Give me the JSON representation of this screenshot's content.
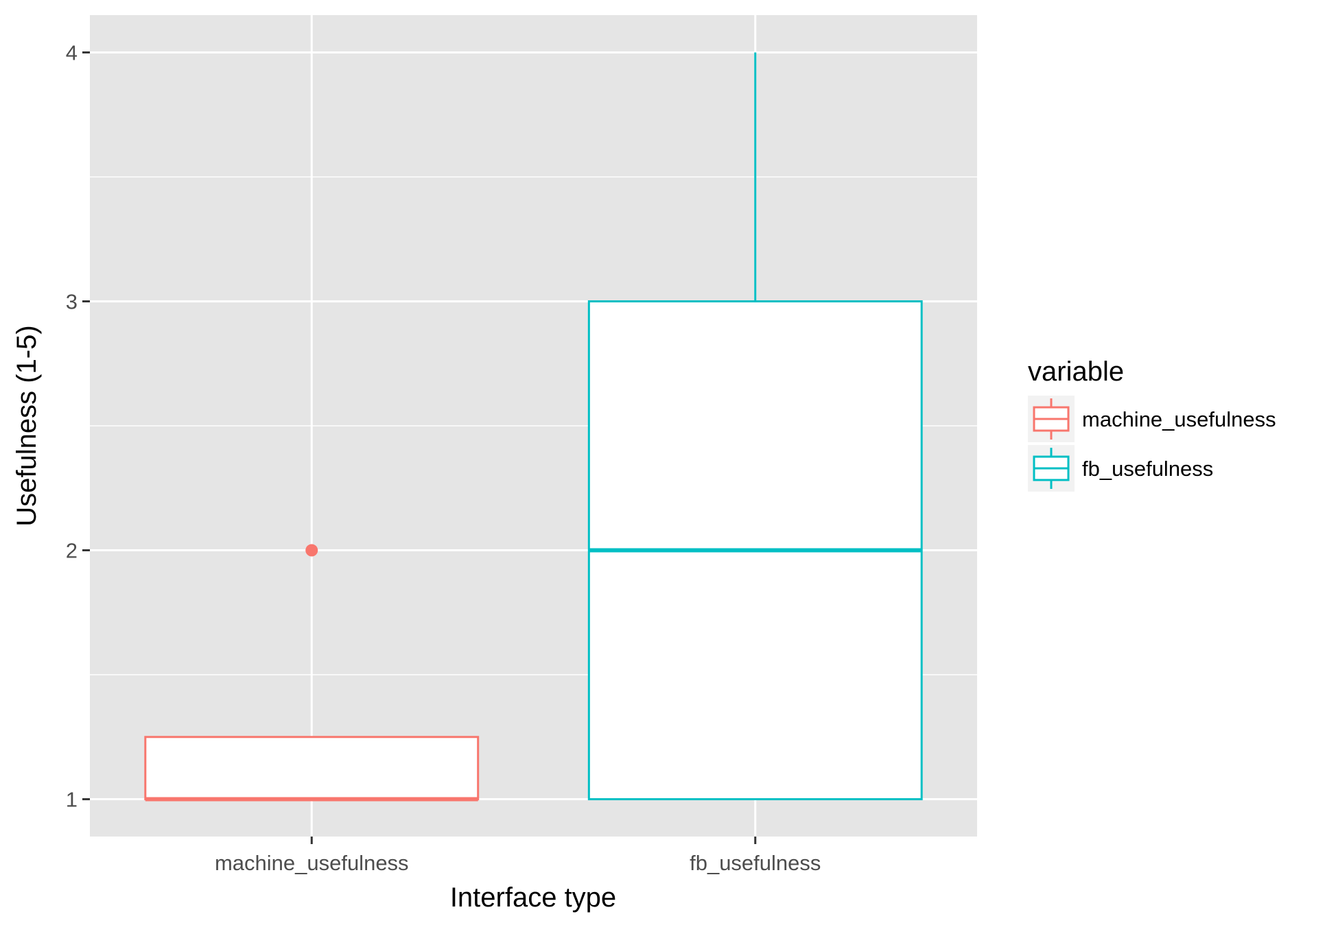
{
  "chart_data": {
    "type": "boxplot",
    "xlabel": "Interface type",
    "ylabel": "Usefulness (1-5)",
    "ylim": [
      0.85,
      4.15
    ],
    "y_ticks": [
      1,
      2,
      3,
      4
    ],
    "y_minor_ticks": [
      1.5,
      2.5,
      3.5
    ],
    "grid": true,
    "legend_title": "variable",
    "legend_placement": "right",
    "categories": [
      "machine_usefulness",
      "fb_usefulness"
    ],
    "series": [
      {
        "name": "machine_usefulness",
        "color": "#F8766D",
        "min": 1,
        "q1": 1,
        "median": 1,
        "q3": 1.25,
        "max": 1.25,
        "outliers": [
          2
        ]
      },
      {
        "name": "fb_usefulness",
        "color": "#00BFC4",
        "min": 1,
        "q1": 1,
        "median": 2,
        "q3": 3,
        "max": 4,
        "outliers": []
      }
    ],
    "colors": {
      "panel_background": "#E5E5E5",
      "grid": "#FFFFFF",
      "box_fill": "#FFFFFF"
    }
  }
}
